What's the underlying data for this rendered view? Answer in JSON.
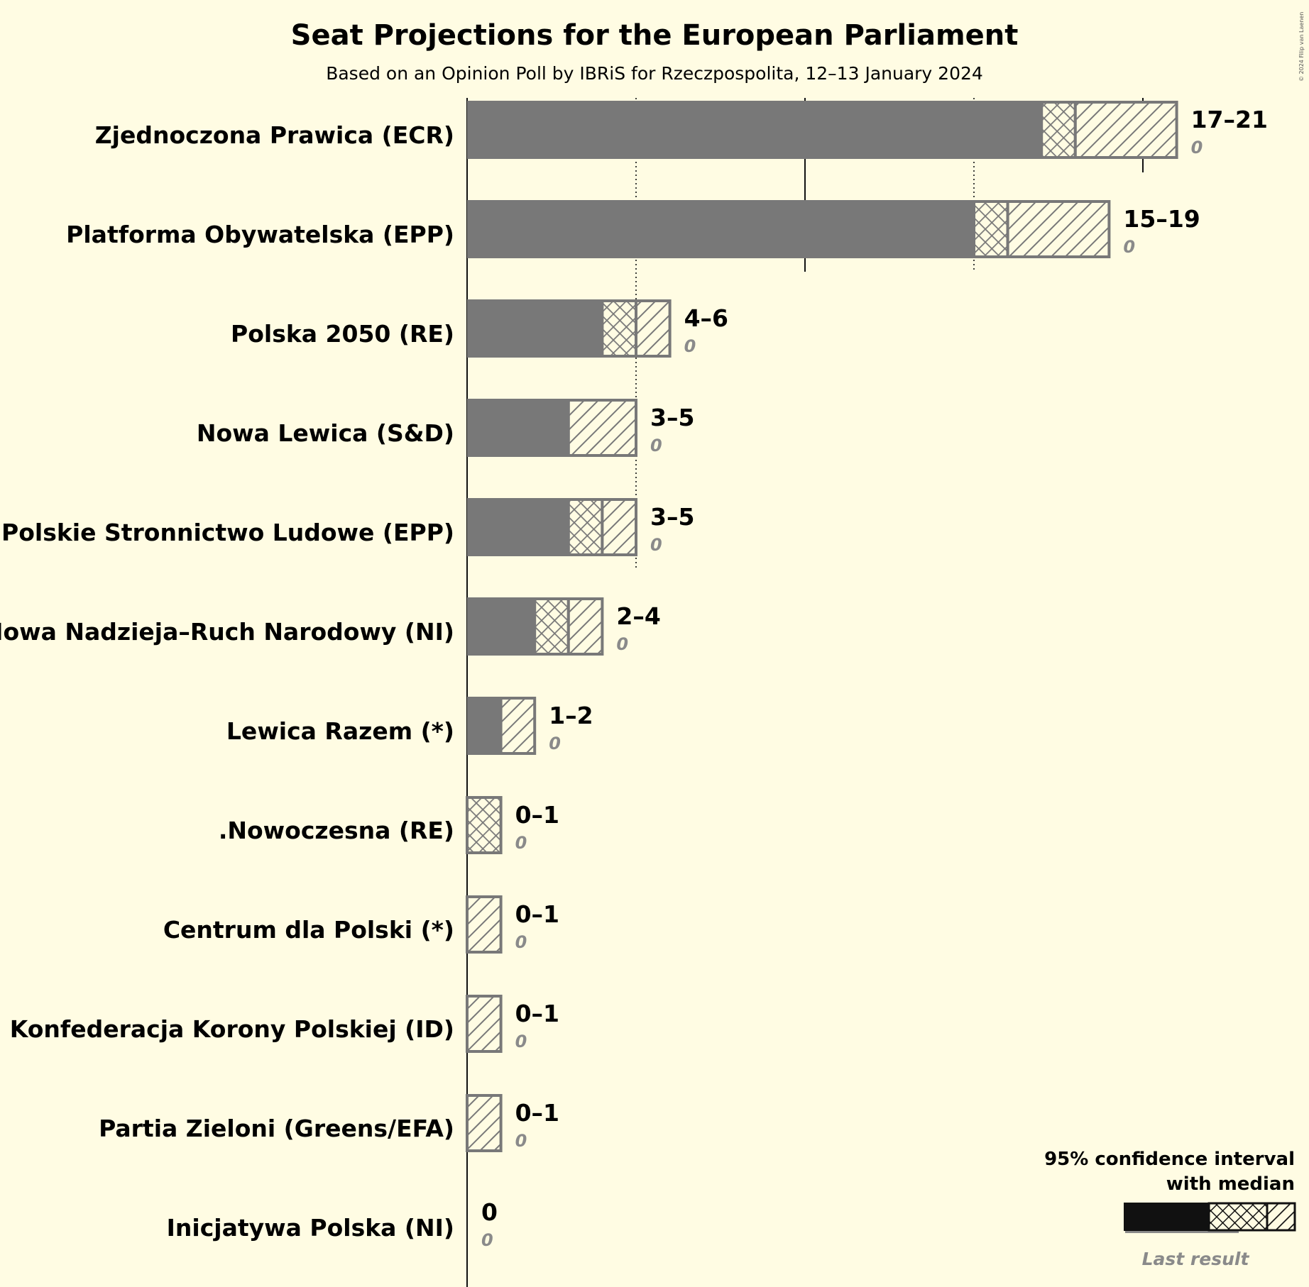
{
  "title": "Seat Projections for the European Parliament",
  "subtitle": "Based on an Opinion Poll by IBRiS for Rzeczpospolita, 12–13 January 2024",
  "copyright": "© 2024 Filip van Laenen",
  "legend": {
    "line1": "95% confidence interval",
    "line2": "with median",
    "last_result": "Last result"
  },
  "colors": {
    "background": "#FFFCE3",
    "bar": "#787878",
    "legend_bar": "#111111",
    "last_result": "#8a8a8a"
  },
  "chart_data": {
    "type": "bar",
    "orientation": "horizontal",
    "title": "Seat Projections for the European Parliament",
    "subtitle": "Based on an Opinion Poll by IBRiS for Rzeczpospolita, 12–13 January 2024",
    "x_unit": "seats",
    "xlim": [
      0,
      21
    ],
    "gridlines": [
      5,
      10,
      15,
      20
    ],
    "majority_line": 20,
    "parties": [
      {
        "name": "Zjednoczona Prawica (ECR)",
        "low": 17,
        "median": 18,
        "high": 21,
        "label": "17–21",
        "last": "0"
      },
      {
        "name": "Platforma Obywatelska (EPP)",
        "low": 15,
        "median": 16,
        "high": 19,
        "label": "15–19",
        "last": "0"
      },
      {
        "name": "Polska 2050 (RE)",
        "low": 4,
        "median": 5,
        "high": 6,
        "label": "4–6",
        "last": "0"
      },
      {
        "name": "Nowa Lewica (S&D)",
        "low": 3,
        "median": 3,
        "high": 5,
        "label": "3–5",
        "last": "0"
      },
      {
        "name": "Polskie Stronnictwo Ludowe (EPP)",
        "low": 3,
        "median": 4,
        "high": 5,
        "label": "3–5",
        "last": "0"
      },
      {
        "name": "Nowa Nadzieja–Ruch Narodowy (NI)",
        "low": 2,
        "median": 3,
        "high": 4,
        "label": "2–4",
        "last": "0"
      },
      {
        "name": "Lewica Razem (*)",
        "low": 1,
        "median": 1,
        "high": 2,
        "label": "1–2",
        "last": "0"
      },
      {
        "name": ".Nowoczesna (RE)",
        "low": 0,
        "median": 1,
        "high": 1,
        "label": "0–1",
        "last": "0"
      },
      {
        "name": "Centrum dla Polski (*)",
        "low": 0,
        "median": 0,
        "high": 1,
        "label": "0–1",
        "last": "0"
      },
      {
        "name": "Konfederacja Korony Polskiej (ID)",
        "low": 0,
        "median": 0,
        "high": 1,
        "label": "0–1",
        "last": "0"
      },
      {
        "name": "Partia Zieloni (Greens/EFA)",
        "low": 0,
        "median": 0,
        "high": 1,
        "label": "0–1",
        "last": "0"
      },
      {
        "name": "Inicjatywa Polska (NI)",
        "low": 0,
        "median": 0,
        "high": 0,
        "label": "0",
        "last": "0"
      }
    ]
  }
}
